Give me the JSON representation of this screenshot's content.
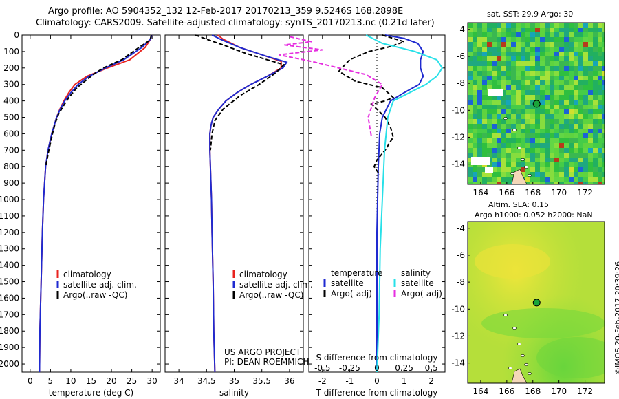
{
  "header": {
    "title_line1": "Argo profile: AO 5904352_132 12-Feb-2017 20170213_359 9.5246S 168.2898E",
    "title_line2": "Climatology: CARS2009. Satellite-adjusted climatology: synTS_20170213.nc (0.21d later)"
  },
  "colors": {
    "climatology": "#e8231f",
    "satellite": "#1f2ad0",
    "argo": "#000000",
    "satellite_salinity": "#28e0e8",
    "argo_adj_salinity": "#e62ee0"
  },
  "chart_data": [
    {
      "type": "line",
      "id": "temperature",
      "xlabel": "temperature (deg C)",
      "ylabel": "",
      "xlim": [
        -2,
        32
      ],
      "ylim": [
        2050,
        0
      ],
      "xticks": [
        0,
        5,
        10,
        15,
        20,
        25,
        30
      ],
      "yticks": [
        0,
        100,
        200,
        300,
        400,
        500,
        600,
        700,
        800,
        900,
        1000,
        1100,
        1200,
        1300,
        1400,
        1500,
        1600,
        1700,
        1800,
        1900,
        2000
      ],
      "legend": [
        "climatology",
        "satellite-adj. clim.",
        "Argo(..raw -QC)"
      ],
      "series": [
        {
          "name": "climatology",
          "color": "#e8231f",
          "style": "solid",
          "x": [
            29.9,
            29.6,
            28.3,
            24.5,
            19.0,
            14.0,
            11.0,
            9.5,
            8.3,
            7.3,
            6.5,
            5.9,
            5.3,
            4.4,
            3.8,
            3.3,
            3.0,
            2.8,
            2.6,
            2.4,
            2.3
          ],
          "y": [
            0,
            25,
            75,
            150,
            200,
            250,
            300,
            350,
            400,
            450,
            500,
            550,
            600,
            700,
            800,
            1000,
            1200,
            1400,
            1600,
            1800,
            2050
          ]
        },
        {
          "name": "satellite-adj. clim.",
          "color": "#1f2ad0",
          "style": "solid",
          "x": [
            29.9,
            29.6,
            27.5,
            23.0,
            18.5,
            14.5,
            11.8,
            10.0,
            8.5,
            7.4,
            6.5,
            5.9,
            5.3,
            4.4,
            3.8,
            3.3,
            3.0,
            2.8,
            2.6,
            2.4,
            2.3
          ],
          "y": [
            0,
            25,
            75,
            150,
            200,
            250,
            300,
            350,
            400,
            450,
            500,
            550,
            600,
            700,
            800,
            1000,
            1200,
            1400,
            1600,
            1800,
            2050
          ]
        },
        {
          "name": "Argo(..raw -QC)",
          "color": "#000000",
          "style": "dashed",
          "x": [
            29.8,
            29.5,
            26.5,
            22.5,
            18.0,
            15.5,
            13.5,
            11.5,
            9.5,
            8.2,
            7.0,
            6.1,
            5.5,
            4.6,
            3.9
          ],
          "y": [
            0,
            30,
            80,
            150,
            200,
            240,
            280,
            320,
            380,
            430,
            480,
            540,
            600,
            700,
            790
          ]
        }
      ]
    },
    {
      "type": "line",
      "id": "salinity",
      "xlabel": "salinity",
      "xlim": [
        33.75,
        36.25
      ],
      "ylim": [
        2050,
        0
      ],
      "xticks": [
        34,
        34.5,
        35,
        35.5,
        36
      ],
      "legend": [
        "climatology",
        "satellite-adj. clim.",
        "Argo(..raw -QC)"
      ],
      "annotation": [
        "US ARGO PROJECT",
        "PI: DEAN ROEMMICH"
      ],
      "series": [
        {
          "name": "climatology",
          "color": "#e8231f",
          "style": "solid",
          "x": [
            34.7,
            34.8,
            35.1,
            35.55,
            35.85,
            35.85,
            35.6,
            35.3,
            35.05,
            34.85,
            34.72,
            34.62,
            34.58,
            34.56,
            34.56,
            34.57,
            34.59,
            34.6,
            34.62,
            34.63,
            34.65
          ],
          "y": [
            0,
            25,
            75,
            125,
            160,
            200,
            250,
            300,
            350,
            400,
            450,
            500,
            550,
            600,
            700,
            800,
            1000,
            1200,
            1500,
            1800,
            2050
          ]
        },
        {
          "name": "satellite-adj. clim.",
          "color": "#1f2ad0",
          "style": "solid",
          "x": [
            34.6,
            34.75,
            35.1,
            35.55,
            35.95,
            35.88,
            35.6,
            35.3,
            35.05,
            34.85,
            34.72,
            34.62,
            34.58,
            34.56,
            34.56,
            34.57,
            34.59,
            34.6,
            34.62,
            34.63,
            34.65
          ],
          "y": [
            0,
            25,
            75,
            125,
            165,
            200,
            250,
            300,
            350,
            400,
            450,
            500,
            550,
            600,
            700,
            800,
            1000,
            1200,
            1500,
            1800,
            2050
          ]
        },
        {
          "name": "Argo(..raw -QC)",
          "color": "#000000",
          "style": "dashed",
          "x": [
            34.3,
            34.5,
            34.8,
            35.2,
            35.6,
            35.9,
            35.75,
            35.45,
            35.1,
            34.8,
            34.65,
            34.6,
            34.57
          ],
          "y": [
            0,
            25,
            60,
            110,
            150,
            180,
            230,
            300,
            370,
            450,
            520,
            600,
            700
          ]
        }
      ]
    },
    {
      "type": "line",
      "id": "difference",
      "xlabel": "T difference from climatology",
      "xlabel_top": "S difference from climatology",
      "xlim": [
        -2.5,
        2.5
      ],
      "ylim": [
        2050,
        0
      ],
      "xticks": [
        -2,
        -1,
        0,
        1,
        2
      ],
      "sticks": [
        -0.5,
        -0.25,
        0,
        0.25,
        0.5
      ],
      "legend_temperature_title": "temperature",
      "legend_salinity_title": "salinity",
      "legend": [
        "satellite",
        "Argo(-adj)",
        "satellite",
        "Argo(-adj)"
      ],
      "series": [
        {
          "name": "temperature satellite",
          "color": "#1f2ad0",
          "style": "solid",
          "x": [
            0.3,
            1.0,
            1.5,
            1.7,
            1.6,
            1.6,
            1.7,
            1.55,
            1.0,
            0.5,
            0.2,
            0.1,
            0.05,
            0.0,
            0.0,
            0.0
          ],
          "y": [
            0,
            20,
            50,
            100,
            150,
            200,
            250,
            300,
            350,
            400,
            500,
            600,
            800,
            1200,
            1600,
            2050
          ]
        },
        {
          "name": "temperature Argo(-adj)",
          "color": "#000000",
          "style": "dashed",
          "x": [
            0.2,
            0.6,
            1.0,
            0.5,
            -0.3,
            -1.0,
            -1.4,
            -0.8,
            0.2,
            0.6,
            0.3,
            -0.2,
            0.0,
            0.3,
            0.5,
            0.6,
            0.3,
            0.0,
            -0.1,
            0.1
          ],
          "y": [
            0,
            20,
            40,
            70,
            100,
            150,
            220,
            280,
            320,
            380,
            400,
            420,
            450,
            500,
            560,
            620,
            700,
            760,
            800,
            850
          ]
        },
        {
          "name": "salinity satellite",
          "color": "#28e0e8",
          "style": "solid",
          "x": [
            -0.1,
            0.05,
            0.35,
            0.55,
            0.6,
            0.55,
            0.45,
            0.3,
            0.15,
            0.1,
            0.07,
            0.05,
            0.03,
            0.02,
            0.0
          ],
          "y": [
            0,
            50,
            100,
            150,
            200,
            250,
            300,
            350,
            400,
            500,
            700,
            1000,
            1300,
            1700,
            2050
          ]
        },
        {
          "name": "salinity Argo(-adj)",
          "color": "#e62ee0",
          "style": "dashed",
          "x": [
            -0.8,
            -0.6,
            -0.85,
            -0.5,
            -0.9,
            -0.6,
            -0.35,
            -0.1,
            0.05,
            -0.02,
            -0.08,
            -0.05
          ],
          "y": [
            10,
            40,
            60,
            90,
            120,
            160,
            200,
            240,
            300,
            380,
            500,
            620
          ]
        }
      ]
    },
    {
      "type": "heatmap",
      "id": "sst-map",
      "title": "sat. SST: 29.9 Argo: 30",
      "xticks": [
        164,
        166,
        168,
        170,
        172
      ],
      "yticks": [
        -4,
        -6,
        -8,
        -10,
        -12,
        -14
      ],
      "xlim": [
        163,
        173.5
      ],
      "ylim": [
        -15.5,
        -3.5
      ],
      "argo_position": [
        168.29,
        -9.52
      ]
    },
    {
      "type": "heatmap",
      "id": "sla-map",
      "title": "Altim. SLA: 0.15",
      "subtitle": "Argo h1000: 0.052 h2000: NaN",
      "xticks": [
        164,
        166,
        168,
        170,
        172
      ],
      "yticks": [
        -4,
        -6,
        -8,
        -10,
        -12,
        -14
      ],
      "xlim": [
        163,
        173.5
      ],
      "ylim": [
        -15.5,
        -3.5
      ],
      "argo_position": [
        168.29,
        -9.52
      ]
    }
  ],
  "footer": {
    "credit": "©IMOS 20-Feb-2017 20:39:26"
  }
}
